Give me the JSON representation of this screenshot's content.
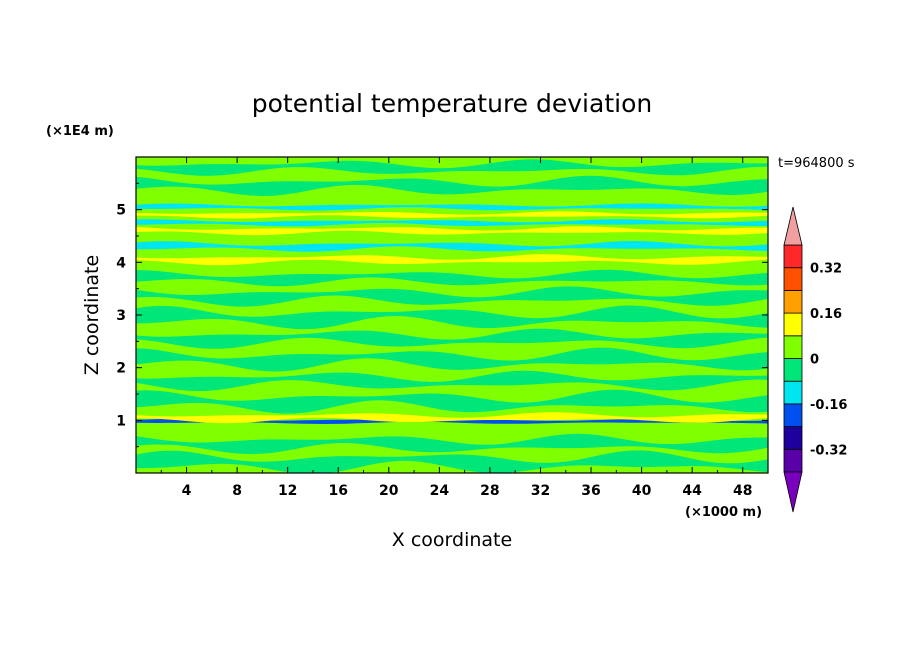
{
  "chart_data": {
    "type": "heatmap",
    "title": "potential temperature deviation",
    "xlabel": "X coordinate",
    "ylabel": "Z coordinate",
    "x_unit": "(×1000 m)",
    "y_unit": "(×1E4 m)",
    "time_label": "t=964800 s",
    "xlim": [
      0,
      50
    ],
    "ylim": [
      0,
      6
    ],
    "x_ticks": [
      4,
      8,
      12,
      16,
      20,
      24,
      28,
      32,
      36,
      40,
      44,
      48
    ],
    "y_ticks": [
      1,
      2,
      3,
      4,
      5
    ],
    "colorbar": {
      "levels": [
        -0.4,
        -0.32,
        -0.24,
        -0.16,
        -0.08,
        0,
        0.08,
        0.16,
        0.24,
        0.32,
        0.4
      ],
      "colors": [
        "#5a00a8",
        "#1e009e",
        "#0050f0",
        "#00e6f0",
        "#00e678",
        "#80ff00",
        "#ffff00",
        "#ffa000",
        "#ff5000",
        "#ff2828"
      ],
      "under_color": "#7a00c0",
      "over_color": "#f0a0a0",
      "tick_labels": [
        "0.32",
        "0.16",
        "0",
        "-0.16",
        "-0.32"
      ],
      "tick_values": [
        0.32,
        0.16,
        0,
        -0.16,
        -0.32
      ]
    },
    "bands": [
      {
        "y": 0.2,
        "phase": 0.3,
        "amp": 0.12,
        "color": "#00e678"
      },
      {
        "y": 0.55,
        "phase": 1.8,
        "amp": 0.1,
        "color": "#00e678"
      },
      {
        "y": 0.98,
        "phase": 0.0,
        "amp": 0.02,
        "color": "#0050f0"
      },
      {
        "y": 1.05,
        "phase": 2.4,
        "amp": 0.05,
        "color": "#ffff00"
      },
      {
        "y": 1.35,
        "phase": 0.9,
        "amp": 0.12,
        "color": "#00e678"
      },
      {
        "y": 1.75,
        "phase": 3.1,
        "amp": 0.1,
        "color": "#00e678"
      },
      {
        "y": 2.15,
        "phase": 1.2,
        "amp": 0.12,
        "color": "#00e678"
      },
      {
        "y": 2.55,
        "phase": 2.7,
        "amp": 0.1,
        "color": "#00e678"
      },
      {
        "y": 2.95,
        "phase": 0.5,
        "amp": 0.12,
        "color": "#00e678"
      },
      {
        "y": 3.35,
        "phase": 2.0,
        "amp": 0.1,
        "color": "#00e678"
      },
      {
        "y": 3.7,
        "phase": 1.1,
        "amp": 0.08,
        "color": "#00e678"
      },
      {
        "y": 4.05,
        "phase": 2.6,
        "amp": 0.05,
        "color": "#ffff00"
      },
      {
        "y": 4.3,
        "phase": 0.4,
        "amp": 0.05,
        "color": "#00e6f0"
      },
      {
        "y": 4.6,
        "phase": 1.7,
        "amp": 0.04,
        "color": "#ffff00"
      },
      {
        "y": 4.75,
        "phase": 0.8,
        "amp": 0.03,
        "color": "#00e6f0"
      },
      {
        "y": 4.9,
        "phase": 2.2,
        "amp": 0.03,
        "color": "#ffff00"
      },
      {
        "y": 5.05,
        "phase": 0.2,
        "amp": 0.03,
        "color": "#00e6f0"
      },
      {
        "y": 5.45,
        "phase": 1.5,
        "amp": 0.1,
        "color": "#00e678"
      },
      {
        "y": 5.8,
        "phase": 2.9,
        "amp": 0.08,
        "color": "#00e678"
      }
    ]
  }
}
